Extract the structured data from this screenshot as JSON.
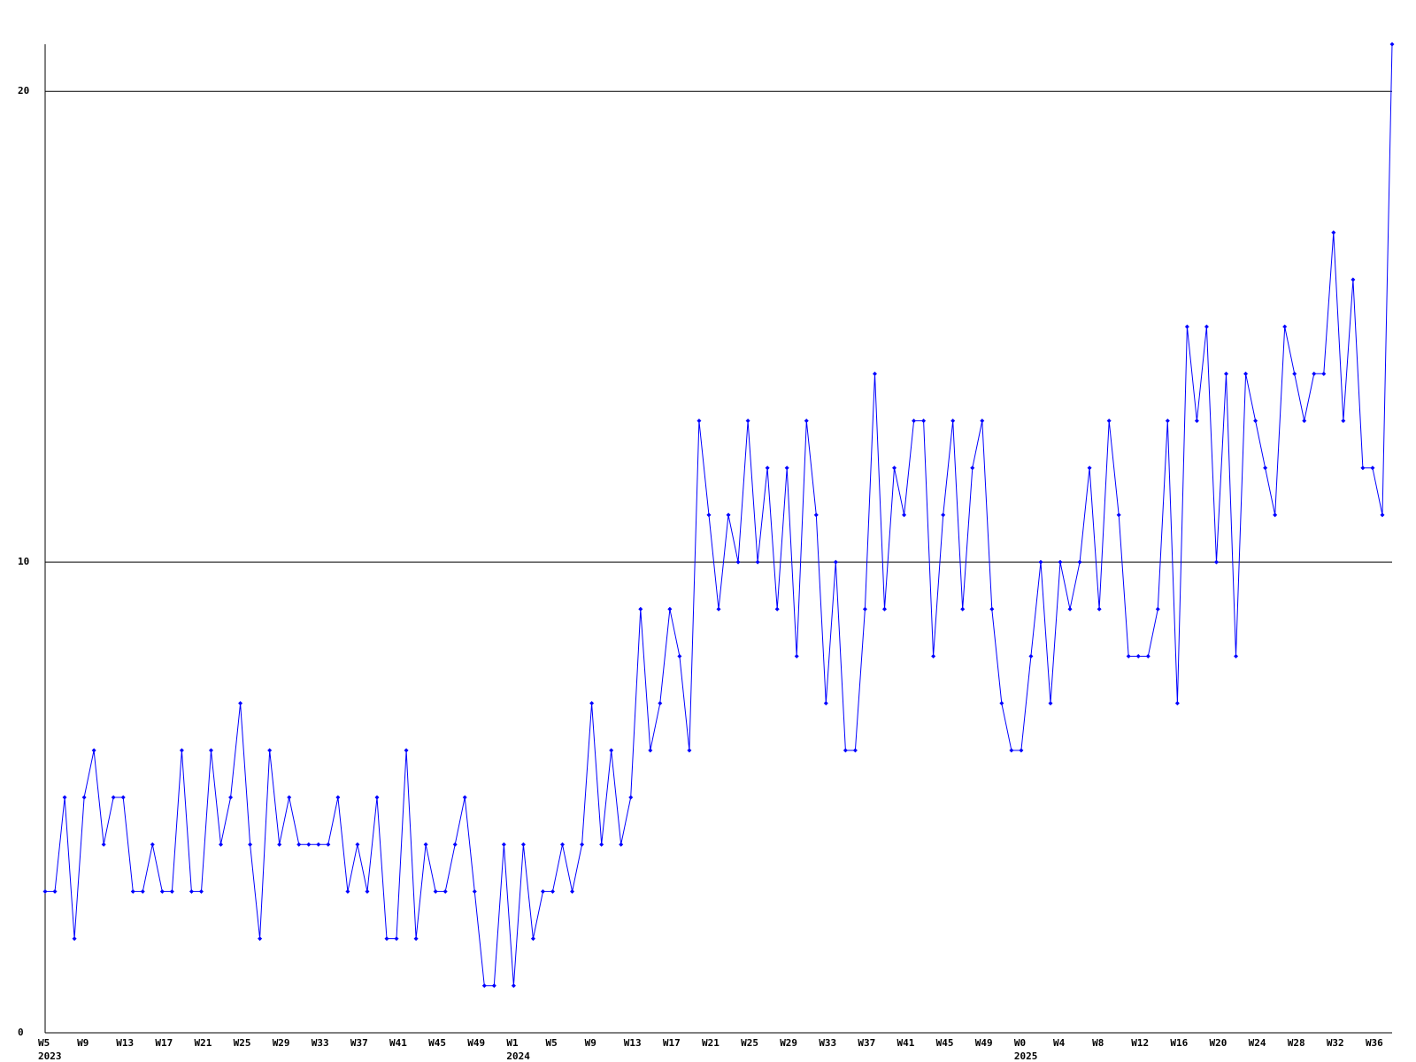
{
  "chart_data": {
    "type": "line",
    "categories": [
      "W5",
      null,
      null,
      null,
      "W9",
      null,
      null,
      null,
      "W13",
      null,
      null,
      null,
      "W17",
      null,
      null,
      null,
      "W21",
      null,
      null,
      null,
      "W25",
      null,
      null,
      null,
      "W29",
      null,
      null,
      null,
      "W33",
      null,
      null,
      null,
      "W37",
      null,
      null,
      null,
      "W41",
      null,
      null,
      null,
      "W45",
      null,
      null,
      null,
      "W49",
      null,
      null,
      null,
      "W1",
      null,
      null,
      null,
      "W5",
      null,
      null,
      null,
      "W9",
      null,
      null,
      null,
      "W13",
      null,
      null,
      null,
      "W17",
      null,
      null,
      null,
      "W21",
      null,
      null,
      null,
      "W25",
      null,
      null,
      null,
      "W29",
      null,
      null,
      null,
      "W33",
      null,
      null,
      null,
      "W37",
      null,
      null,
      null,
      "W41",
      null,
      null,
      null,
      "W45",
      null,
      null,
      null,
      "W49",
      null,
      null,
      null,
      "W0",
      null,
      null,
      null,
      "W4",
      null,
      null,
      null,
      "W8",
      null,
      null,
      null,
      "W12",
      null,
      null,
      null,
      "W16",
      null,
      null,
      null,
      "W20",
      null,
      null,
      null,
      "W24",
      null,
      null,
      null,
      "W28",
      null,
      null,
      null,
      "W32",
      null,
      null,
      null,
      "W36",
      null,
      null
    ],
    "category_years": [
      "2023",
      null,
      null,
      null,
      null,
      null,
      null,
      null,
      null,
      null,
      null,
      null,
      null,
      null,
      null,
      null,
      null,
      null,
      null,
      null,
      null,
      null,
      null,
      null,
      null,
      null,
      null,
      null,
      null,
      null,
      null,
      null,
      null,
      null,
      null,
      null,
      null,
      null,
      null,
      null,
      null,
      null,
      null,
      null,
      null,
      null,
      null,
      null,
      "2024",
      null,
      null,
      null,
      null,
      null,
      null,
      null,
      null,
      null,
      null,
      null,
      null,
      null,
      null,
      null,
      null,
      null,
      null,
      null,
      null,
      null,
      null,
      null,
      null,
      null,
      null,
      null,
      null,
      null,
      null,
      null,
      null,
      null,
      null,
      null,
      null,
      null,
      null,
      null,
      null,
      null,
      null,
      null,
      null,
      null,
      null,
      null,
      null,
      null,
      null,
      null,
      "2025",
      null,
      null,
      null,
      null,
      null,
      null,
      null,
      null,
      null,
      null,
      null,
      null,
      null,
      null,
      null,
      null,
      null,
      null,
      null,
      null,
      null,
      null,
      null,
      null,
      null,
      null,
      null,
      null,
      null,
      null,
      null,
      null,
      null,
      null,
      null,
      null,
      null,
      null
    ],
    "values": [
      3,
      3,
      5,
      2,
      5,
      6,
      4,
      5,
      5,
      3,
      3,
      4,
      3,
      3,
      6,
      3,
      3,
      6,
      4,
      5,
      7,
      4,
      2,
      6,
      4,
      5,
      4,
      4,
      4,
      4,
      5,
      3,
      4,
      3,
      5,
      2,
      2,
      6,
      2,
      4,
      3,
      3,
      4,
      5,
      3,
      1,
      1,
      4,
      1,
      4,
      2,
      3,
      3,
      4,
      3,
      4,
      7,
      4,
      6,
      4,
      5,
      9,
      6,
      7,
      9,
      8,
      6,
      13,
      11,
      9,
      11,
      10,
      13,
      10,
      12,
      9,
      12,
      8,
      13,
      11,
      7,
      10,
      6,
      6,
      9,
      14,
      9,
      12,
      11,
      13,
      13,
      8,
      11,
      13,
      9,
      12,
      13,
      9,
      7,
      6,
      6,
      8,
      10,
      7,
      10,
      9,
      10,
      12,
      9,
      13,
      11,
      8,
      8,
      8,
      9,
      13,
      7,
      15,
      13,
      15,
      10,
      14,
      8,
      14,
      13,
      12,
      11,
      15,
      14,
      13,
      14,
      14,
      17,
      13,
      16,
      12,
      12,
      11,
      21
    ],
    "color": "#0000ff",
    "ylim": [
      0,
      21
    ],
    "yticks": [
      0,
      10,
      20
    ],
    "grid": true
  }
}
